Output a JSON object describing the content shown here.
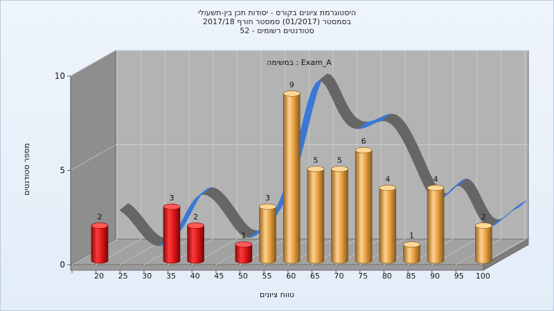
{
  "chart_data": {
    "type": "bar",
    "title_lines": [
      "היסטוגרמת ציונים בקורס - יסודות תכן בין-תשעולי",
      "בסמסטר  (01/2017)  סמסטר חורף 2017/18",
      "סטודנטים רשומים - 52"
    ],
    "annotation": "במשימה : Exam_A",
    "xlabel": "טווח ציונים",
    "ylabel": "מספר סטודנטים",
    "ylim": [
      0,
      10
    ],
    "y_ticks": [
      "0",
      "5",
      "10"
    ],
    "categories": [
      "20",
      "25",
      "30",
      "35",
      "40",
      "45",
      "50",
      "55",
      "60",
      "65",
      "70",
      "75",
      "80",
      "85",
      "90",
      "95",
      "100"
    ],
    "values": [
      2,
      0,
      0,
      3,
      2,
      0,
      1,
      3,
      9,
      5,
      5,
      6,
      4,
      1,
      4,
      0,
      2
    ],
    "bar_colors": [
      "#e02020",
      "#e02020",
      "#e02020",
      "#e02020",
      "#e02020",
      "#e02020",
      "#e02020",
      "#e8a64a",
      "#e8a64a",
      "#e8a64a",
      "#e8a64a",
      "#e8a64a",
      "#e8a64a",
      "#e8a64a",
      "#e8a64a",
      "#e8a64a",
      "#e8a64a"
    ],
    "fail_color": "#e02020",
    "pass_color": "#e8a64a",
    "curve_rising_color": "#3a78d6",
    "curve_falling_color": "#666666",
    "grid": true
  }
}
